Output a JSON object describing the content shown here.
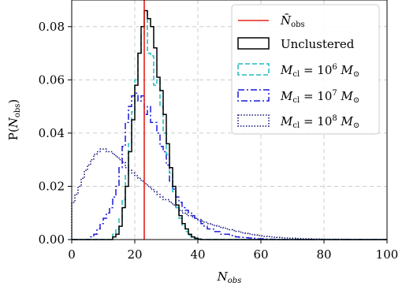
{
  "chart_data": {
    "type": "line",
    "title": "",
    "xlabel": "N_obs",
    "ylabel": "P(N_obs)",
    "xlim": [
      0,
      100
    ],
    "ylim": [
      0,
      0.09
    ],
    "xticks": [
      "0",
      "20",
      "40",
      "60",
      "80",
      "100"
    ],
    "yticks": [
      "0.00",
      "0.02",
      "0.04",
      "0.06",
      "0.08"
    ],
    "grid": true,
    "legend_position": "top-right",
    "vline": {
      "name": "N̄_obs",
      "x": 23,
      "color": "#e8201b"
    },
    "histogram_edges": [
      0,
      1,
      2,
      3,
      4,
      5,
      6,
      7,
      8,
      9,
      10,
      11,
      12,
      13,
      14,
      15,
      16,
      17,
      18,
      19,
      20,
      21,
      22,
      23,
      24,
      25,
      26,
      27,
      28,
      29,
      30,
      31,
      32,
      33,
      34,
      35,
      36,
      37,
      38,
      39,
      40,
      41,
      42,
      43,
      44,
      45,
      46,
      47,
      48,
      49,
      50,
      51,
      52,
      53,
      54,
      55,
      56,
      57,
      58,
      59,
      60,
      61,
      62,
      63,
      64,
      65,
      66,
      67,
      68,
      69,
      70,
      71,
      72,
      73,
      74,
      75,
      76,
      77,
      78,
      79,
      80,
      81,
      82,
      83,
      84,
      85,
      86,
      87,
      88,
      89,
      90,
      91,
      92,
      93,
      94,
      95,
      96,
      97,
      98,
      99,
      100
    ],
    "series": [
      {
        "name": "Unclustered",
        "color": "#000000",
        "dash": "",
        "values": [
          0,
          0,
          0,
          0,
          0,
          0,
          0,
          0,
          0,
          0,
          0,
          0,
          0,
          0.001,
          0.002,
          0.005,
          0.012,
          0.02,
          0.033,
          0.045,
          0.058,
          0.07,
          0.08,
          0.086,
          0.083,
          0.08,
          0.072,
          0.061,
          0.056,
          0.047,
          0.036,
          0.027,
          0.02,
          0.013,
          0.009,
          0.006,
          0.004,
          0.002,
          0.001,
          0.0005,
          0.0002,
          0,
          0,
          0,
          0,
          0,
          0,
          0,
          0,
          0,
          0,
          0,
          0,
          0,
          0,
          0,
          0,
          0,
          0,
          0,
          0,
          0,
          0,
          0,
          0,
          0,
          0,
          0,
          0,
          0,
          0,
          0,
          0,
          0,
          0,
          0,
          0,
          0,
          0,
          0,
          0,
          0,
          0,
          0,
          0,
          0,
          0,
          0,
          0,
          0,
          0,
          0,
          0,
          0,
          0,
          0,
          0,
          0,
          0,
          0
        ]
      },
      {
        "name": "M_cl = 10^6 M_⊙",
        "color": "#21bcbe",
        "dash": "6,3",
        "values": [
          0,
          0,
          0,
          0,
          0,
          0,
          0,
          0,
          0,
          0,
          0,
          0,
          0,
          0.002,
          0.004,
          0.008,
          0.015,
          0.024,
          0.036,
          0.048,
          0.06,
          0.07,
          0.077,
          0.086,
          0.07,
          0.069,
          0.058,
          0.06,
          0.05,
          0.04,
          0.032,
          0.025,
          0.018,
          0.012,
          0.008,
          0.005,
          0.003,
          0.0015,
          0.0008,
          0.0003,
          0.0001,
          0,
          0,
          0,
          0,
          0,
          0,
          0,
          0,
          0,
          0,
          0,
          0,
          0,
          0,
          0,
          0,
          0,
          0,
          0,
          0,
          0,
          0,
          0,
          0,
          0,
          0,
          0,
          0,
          0,
          0,
          0,
          0,
          0,
          0,
          0,
          0,
          0,
          0,
          0,
          0,
          0,
          0,
          0,
          0,
          0,
          0,
          0,
          0,
          0,
          0,
          0,
          0,
          0,
          0,
          0,
          0,
          0,
          0,
          0
        ]
      },
      {
        "name": "M_cl = 10^7 M_⊙",
        "color": "#1a1adb",
        "dash": "8,3,2,3",
        "values": [
          0,
          0,
          0,
          0,
          0,
          0,
          0.001,
          0.002,
          0.004,
          0.006,
          0.008,
          0.01,
          0.012,
          0.016,
          0.02,
          0.027,
          0.035,
          0.044,
          0.05,
          0.054,
          0.055,
          0.052,
          0.054,
          0.047,
          0.05,
          0.044,
          0.044,
          0.04,
          0.035,
          0.033,
          0.028,
          0.022,
          0.019,
          0.016,
          0.014,
          0.012,
          0.011,
          0.01,
          0.009,
          0.008,
          0.007,
          0.006,
          0.005,
          0.004,
          0.004,
          0.003,
          0.003,
          0.002,
          0.002,
          0.002,
          0.0015,
          0.0012,
          0.001,
          0.0009,
          0.0008,
          0.0007,
          0.0006,
          0.0005,
          0.0004,
          0.0003,
          0.0003,
          0.0002,
          0.0002,
          0.0001,
          0.0001,
          0,
          0,
          0,
          0,
          0,
          0,
          0,
          0,
          0,
          0,
          0,
          0,
          0,
          0,
          0,
          0,
          0,
          0,
          0,
          0,
          0,
          0,
          0,
          0,
          0,
          0,
          0,
          0,
          0,
          0,
          0,
          0,
          0,
          0,
          0
        ]
      },
      {
        "name": "M_cl = 10^8 M_⊙",
        "color": "#10107a",
        "dash": "1.5,2",
        "values": [
          0.014,
          0.017,
          0.02,
          0.023,
          0.026,
          0.028,
          0.03,
          0.032,
          0.033,
          0.034,
          0.034,
          0.033,
          0.033,
          0.032,
          0.031,
          0.03,
          0.029,
          0.027,
          0.026,
          0.025,
          0.024,
          0.023,
          0.022,
          0.021,
          0.02,
          0.019,
          0.018,
          0.017,
          0.016,
          0.015,
          0.015,
          0.014,
          0.013,
          0.012,
          0.011,
          0.01,
          0.0095,
          0.009,
          0.0085,
          0.008,
          0.0075,
          0.007,
          0.0065,
          0.006,
          0.0056,
          0.0053,
          0.005,
          0.0046,
          0.0043,
          0.004,
          0.0037,
          0.0034,
          0.0031,
          0.0028,
          0.0025,
          0.0023,
          0.0021,
          0.0019,
          0.0017,
          0.0015,
          0.0014,
          0.0012,
          0.0011,
          0.001,
          0.0009,
          0.0008,
          0.0007,
          0.0006,
          0.0006,
          0.0005,
          0.0005,
          0.0004,
          0.0004,
          0.0003,
          0.0003,
          0.0003,
          0.0002,
          0.0002,
          0.0002,
          0.0002,
          0.0001,
          0.0001,
          0.0001,
          0.0001,
          0.0001,
          0.0001,
          0.0001,
          0.0001,
          0,
          0,
          0,
          0,
          0,
          0,
          0,
          0,
          0,
          0,
          0,
          0
        ]
      }
    ]
  }
}
